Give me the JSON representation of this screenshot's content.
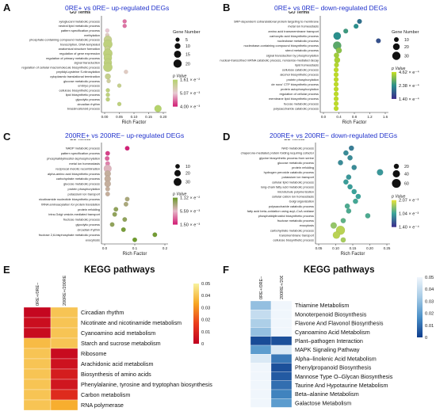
{
  "panels": [
    {
      "label": "A",
      "title": "0RE+ vs 0RE− up-regulated DEGs",
      "chart_data": {
        "type": "scatter",
        "header": "GO Terms",
        "xlabel": "Rich Factor",
        "xticks": [
          "0.00",
          "0.05",
          "0.10",
          "0.15",
          "0.20"
        ],
        "xlim": [
          0,
          0.22
        ],
        "terms": [
          "xyloglucanl metabolic process",
          "neutral lipid metabolic process",
          "pattern specification process",
          "methylation",
          "phosphate-containing compound metabolic process",
          "transcription, DNA-templated",
          "anatomical structure formation",
          "regulation of gene expression",
          "regulation of primary metabolic process",
          "signal transduction",
          "regulation of cellular macromolecule biosynthetic process",
          "peptidyl-cysteine S-nitrosylation",
          "cytoplasmic translational termination",
          "glucose metabolic process",
          "embryo process",
          "cellulose biosynthetic process",
          "lipid biosynthetic process",
          "glycolytic process",
          "circadian rhythm",
          "brassinosteroid process"
        ],
        "points": [
          {
            "x": 0.075,
            "size": 5,
            "p": 0.013
          },
          {
            "x": 0.075,
            "size": 5,
            "p": 0.013
          },
          {
            "x": 0.01,
            "size": 5,
            "p": 0.01
          },
          {
            "x": 0.01,
            "size": 5,
            "p": 0.009
          },
          {
            "x": 0.012,
            "size": 20,
            "p": 0.006
          },
          {
            "x": 0.012,
            "size": 25,
            "p": 0.005
          },
          {
            "x": 0.01,
            "size": 10,
            "p": 0.006
          },
          {
            "x": 0.012,
            "size": 25,
            "p": 0.005
          },
          {
            "x": 0.012,
            "size": 20,
            "p": 0.005
          },
          {
            "x": 0.012,
            "size": 20,
            "p": 0.005
          },
          {
            "x": 0.012,
            "size": 25,
            "p": 0.005
          },
          {
            "x": 0.08,
            "size": 5,
            "p": 0.009
          },
          {
            "x": 0.012,
            "size": 10,
            "p": 0.006
          },
          {
            "x": 0.015,
            "size": 5,
            "p": 0.007
          },
          {
            "x": 0.055,
            "size": 5,
            "p": 0.006
          },
          {
            "x": 0.012,
            "size": 5,
            "p": 0.005
          },
          {
            "x": 0.012,
            "size": 5,
            "p": 0.005
          },
          {
            "x": 0.012,
            "size": 5,
            "p": 0.005
          },
          {
            "x": 0.055,
            "size": 5,
            "p": 0.005
          },
          {
            "x": 0.2,
            "size": 15,
            "p": 0.004
          }
        ],
        "size_legend": {
          "title": "Gene Number",
          "values": [
            5,
            10,
            15,
            20
          ]
        },
        "color_legend": {
          "title": "p Value",
          "labels": [
            "1.61 × e⁻²",
            "5.07 × e⁻³",
            "4.00 × e⁻³"
          ],
          "colors": [
            "#b5d36c",
            "#e8c9d3",
            "#d11a73"
          ],
          "range": [
            0.016,
            0.004
          ]
        }
      }
    },
    {
      "label": "B",
      "title": "0RE+ vs 0RE− down-regulated DEGs",
      "chart_data": {
        "type": "scatter",
        "header": "GO Terms",
        "xlabel": "Rich Factor",
        "xticks": [
          "0.0",
          "0.4",
          "0.8",
          "1.2",
          "1.6"
        ],
        "xlim": [
          0,
          1.8
        ],
        "terms": [
          "SRP-dependent cotranslational protein targeting to membrane",
          "metal ion homeostasis",
          "amino acid transmembrane transport",
          "carboxylic acid biosynthetic process",
          "nucleobase metabolic process",
          "nucleobase-containing compound biosynthetic process",
          "sterol metabolic process",
          "signal transduction by phosphorylation",
          "nuclear-transcribed mRNA catabolic process, nonsense-mediated decay",
          "lipid homeostasis",
          "cellulose catabolic process",
          "alcohol biosynthetic process",
          "protein phosphorylation",
          "de novo' CTP biosynthetic process",
          "protein autophosphorylation",
          "regulation of cellular process",
          "membrane lipid biosynthetic process",
          "fucose metabolic process",
          "polysaccharide catabolic process"
        ],
        "points": [
          {
            "x": 1.05,
            "size": 10,
            "p": 0.00035
          },
          {
            "x": 0.95,
            "size": 10,
            "p": 0.0003
          },
          {
            "x": 0.65,
            "size": 10,
            "p": 0.00028
          },
          {
            "x": 0.4,
            "size": 25,
            "p": 0.0003
          },
          {
            "x": 1.6,
            "size": 10,
            "p": 0.0004
          },
          {
            "x": 0.4,
            "size": 30,
            "p": 0.00025
          },
          {
            "x": 0.45,
            "size": 15,
            "p": 0.0002
          },
          {
            "x": 0.38,
            "size": 12,
            "p": 0.00018
          },
          {
            "x": 0.4,
            "size": 15,
            "p": 0.00017
          },
          {
            "x": 0.38,
            "size": 10,
            "p": 0.00016
          },
          {
            "x": 0.37,
            "size": 10,
            "p": 0.00015
          },
          {
            "x": 0.37,
            "size": 10,
            "p": 0.00015
          },
          {
            "x": 0.37,
            "size": 10,
            "p": 0.00015
          },
          {
            "x": 0.37,
            "size": 10,
            "p": 0.00015
          },
          {
            "x": 0.37,
            "size": 10,
            "p": 0.00015
          },
          {
            "x": 0.37,
            "size": 10,
            "p": 0.00015
          },
          {
            "x": 0.37,
            "size": 10,
            "p": 0.00015
          },
          {
            "x": 0.37,
            "size": 10,
            "p": 0.00015
          },
          {
            "x": 0.37,
            "size": 10,
            "p": 0.00015
          }
        ],
        "size_legend": {
          "title": "Gene Number",
          "values": [
            10,
            20,
            30
          ]
        },
        "color_legend": {
          "title": "p Value",
          "labels": [
            "4.62 × e⁻⁴",
            "2.38 × e⁻⁴",
            "1.40 × e⁻⁴"
          ],
          "colors": [
            "#c7e020",
            "#2a8f8c",
            "#3b2a8c"
          ],
          "range": [
            0.00046,
            0.00014
          ]
        }
      }
    },
    {
      "label": "C",
      "title": "200RE+ vs 200RE− up-regulated DEGs",
      "chart_data": {
        "type": "scatter",
        "header": "GO Terms",
        "xlabel": "Rich Factor",
        "xticks": [
          "0.0",
          "0.1",
          "0.2"
        ],
        "xlim": [
          0,
          0.24
        ],
        "terms": [
          "NADP metabolic process",
          "pattern specification process",
          "phosphatidylinositol dephosphorylation",
          "metal ion homeostasis",
          "reciprocal meiotic recombination",
          "alpha-amino acid biosynthetic process",
          "carbohydrate metabolic process",
          "glucose metabolic process",
          "protein phosphorylation",
          "potassium ion transport",
          "nicotinamide nucleotide biosynthetic process",
          "tRNA aminoacylation for protein translation",
          "protein refolding",
          "intra-Golgi vesicle-mediated transport",
          "fructose metabolic process",
          "glycolytic process",
          "circadian rhythm",
          "fructose 2,6-bisphosphate metabolic process",
          "exocytosis"
        ],
        "points": [
          {
            "x": 0.09,
            "size": 10,
            "p": 0.011
          },
          {
            "x": 0.012,
            "size": 10,
            "p": 0.01
          },
          {
            "x": 0.01,
            "size": 10,
            "p": 0.009
          },
          {
            "x": 0.012,
            "size": 10,
            "p": 0.008
          },
          {
            "x": 0.012,
            "size": 30,
            "p": 0.006
          },
          {
            "x": 0.012,
            "size": 20,
            "p": 0.005
          },
          {
            "x": 0.012,
            "size": 20,
            "p": 0.005
          },
          {
            "x": 0.012,
            "size": 20,
            "p": 0.005
          },
          {
            "x": 0.012,
            "size": 10,
            "p": 0.005
          },
          {
            "x": 0.012,
            "size": 10,
            "p": 0.005
          },
          {
            "x": 0.09,
            "size": 10,
            "p": 0.004
          },
          {
            "x": 0.085,
            "size": 10,
            "p": 0.004
          },
          {
            "x": 0.045,
            "size": 10,
            "p": 0.003
          },
          {
            "x": 0.04,
            "size": 10,
            "p": 0.003
          },
          {
            "x": 0.08,
            "size": 10,
            "p": 0.003
          },
          {
            "x": 0.03,
            "size": 10,
            "p": 0.003
          },
          {
            "x": 0.075,
            "size": 10,
            "p": 0.002
          },
          {
            "x": 0.2,
            "size": 10,
            "p": 0.0018
          },
          {
            "x": 0.12,
            "size": 10,
            "p": 0.0016
          }
        ],
        "size_legend": {
          "title": "",
          "values": [
            10,
            20,
            30
          ]
        },
        "color_legend": {
          "title": "p Value",
          "labels": [
            "1.12 × e⁻²",
            "5.59 × e⁻³",
            "1.50 × e⁻³"
          ],
          "colors": [
            "#6b9a2a",
            "#e6b6c8",
            "#d11a73"
          ],
          "range": [
            0.0112,
            0.0015
          ]
        }
      }
    },
    {
      "label": "D",
      "title": "200RE+ vs 200RE− down-regulated DEGs",
      "chart_data": {
        "type": "scatter",
        "header": "GO Terms",
        "xlabel": "Rich Factor",
        "xticks": [
          "0.05",
          "0.10",
          "0.15",
          "0.20",
          "0.25"
        ],
        "xlim": [
          0.02,
          0.27
        ],
        "terms": [
          "NAD metabolic process",
          "chaperone-mediated protein folding requiring cofactor",
          "glycine biosynthetic process from serine",
          "glucose metabolic process",
          "protein refolding",
          "hydrogen peroxide catabolic process",
          "potassium ion transport",
          "cellular lipid metabolic process",
          "long-chain fatty acid metabolic process",
          "microtubule polymerization",
          "cellular cation ion homeostasis",
          "Golgi organization",
          "polysaccharide catabolic process",
          "fatty acid beta–oxidation using acyl–CoA oxidase",
          "phosphatidylinositol biosynthetic process",
          "fructose metabolic process",
          "exocytosis",
          "carbohydrate metabolic process",
          "transmembrane transport",
          "cellulose biosynthetic process"
        ],
        "points": [
          {
            "x": 0.14,
            "size": 20,
            "p": 0.0014
          },
          {
            "x": 0.12,
            "size": 20,
            "p": 0.0013
          },
          {
            "x": 0.135,
            "size": 20,
            "p": 0.0013
          },
          {
            "x": 0.1,
            "size": 20,
            "p": 0.0013
          },
          {
            "x": 0.15,
            "size": 20,
            "p": 0.0013
          },
          {
            "x": 0.245,
            "size": 30,
            "p": 0.0012
          },
          {
            "x": 0.13,
            "size": 20,
            "p": 0.0012
          },
          {
            "x": 0.12,
            "size": 20,
            "p": 0.00115
          },
          {
            "x": 0.135,
            "size": 20,
            "p": 0.00115
          },
          {
            "x": 0.15,
            "size": 20,
            "p": 0.0011
          },
          {
            "x": 0.165,
            "size": 20,
            "p": 0.0011
          },
          {
            "x": 0.155,
            "size": 20,
            "p": 0.00105
          },
          {
            "x": 0.125,
            "size": 20,
            "p": 0.001
          },
          {
            "x": 0.13,
            "size": 20,
            "p": 0.001
          },
          {
            "x": 0.2,
            "size": 20,
            "p": 0.001
          },
          {
            "x": 0.11,
            "size": 20,
            "p": 0.0009
          },
          {
            "x": 0.075,
            "size": 30,
            "p": 0.0006
          },
          {
            "x": 0.1,
            "size": 60,
            "p": 0.0004
          },
          {
            "x": 0.085,
            "size": 40,
            "p": 0.0004
          },
          {
            "x": 0.11,
            "size": 20,
            "p": 0.0005
          }
        ],
        "size_legend": {
          "title": "",
          "values": [
            20,
            40,
            60
          ]
        },
        "color_legend": {
          "title": "p Value",
          "labels": [
            "2.07 × e⁻³",
            "1.04 × e⁻³",
            "1.40 × e⁻⁴"
          ],
          "colors": [
            "#e8e43a",
            "#3aa39a",
            "#3b2a8c"
          ],
          "range": [
            0.00207,
            0.00014
          ]
        }
      }
    },
    {
      "label": "E",
      "title": "KEGG pathways",
      "chart_data": {
        "type": "heatmap",
        "columns": [
          "0RE+/0RE−",
          "200RE+/200RE−"
        ],
        "rows": [
          "Circadian rhythm",
          "Nicotinate and nicotinamide metabolism",
          "Cyanoamino acid metabolism",
          "Starch and sucrose metabolism",
          "Ribosome",
          "Arachidonic acid metabolism",
          "Biosynthesis of amino acids",
          "Phenylalanine, tyrosine and tryptophan biosynthesis",
          "Carbon metabolism",
          "RNA polymerase"
        ],
        "values": [
          [
            0.002,
            0.04
          ],
          [
            0.004,
            0.04
          ],
          [
            0.003,
            0.04
          ],
          [
            0.038,
            0.04
          ],
          [
            0.04,
            0.003
          ],
          [
            0.04,
            0.005
          ],
          [
            0.04,
            0.008
          ],
          [
            0.04,
            0.006
          ],
          [
            0.04,
            0.012
          ],
          [
            0.04,
            0.035
          ]
        ],
        "colorbar": {
          "ticks": [
            "0.05",
            "0.04",
            "0.03",
            "0.02",
            "0.01",
            "0"
          ],
          "range": [
            0,
            0.05
          ],
          "colors": [
            "#f7f29e",
            "#f7a623",
            "#ea3c1c",
            "#c00020"
          ]
        }
      }
    },
    {
      "label": "F",
      "title": "KEGG pathways",
      "chart_data": {
        "type": "heatmap",
        "columns": [
          "0RE+/0RE−",
          "200RE+/200RE−"
        ],
        "rows": [
          "Thiamine Metabolism",
          "Monoterpenoid Biosynthesis",
          "Flavone And Flavonol Biosynthesis",
          "Cyanoamino Acid Metabolism",
          "Plant–pathogen Interaction",
          "MAPK Signaling Pathway",
          "Alpha–linolenic Acid Metabolism",
          "Phenylpropanoid Biosynthesis",
          "Mannose Type O–Glycan Biosynthesis",
          "Taurine And Hypotaurine Metabolism",
          "Beta–alanine Metabolism",
          "Galactose Metabolism"
        ],
        "values": [
          [
            0.03,
            0.05
          ],
          [
            0.04,
            0.05
          ],
          [
            0.035,
            0.05
          ],
          [
            0.03,
            0.05
          ],
          [
            0.003,
            0.004
          ],
          [
            0.02,
            0.045
          ],
          [
            0.045,
            0.012
          ],
          [
            0.05,
            0.004
          ],
          [
            0.05,
            0.006
          ],
          [
            0.05,
            0.01
          ],
          [
            0.05,
            0.014
          ],
          [
            0.05,
            0.02
          ]
        ],
        "colorbar": {
          "ticks": [
            "0.05",
            "0.04",
            "0.03",
            "0.02",
            "0.01",
            "0"
          ],
          "range": [
            0,
            0.05
          ],
          "colors": [
            "#f0f6fc",
            "#a6cbe6",
            "#4a90c8",
            "#0d3c8c"
          ]
        }
      }
    }
  ]
}
